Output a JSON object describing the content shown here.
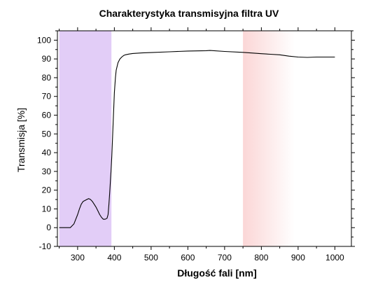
{
  "chart_data": {
    "type": "line",
    "title": "Charakterystyka transmisyjna filtra UV",
    "xlabel": "Długość fali [nm]",
    "ylabel": "Transmisja [%]",
    "xlim": [
      245,
      1045
    ],
    "ylim": [
      -10,
      105
    ],
    "xticks": [
      300,
      400,
      500,
      600,
      700,
      800,
      900,
      1000
    ],
    "xtick_labels": [
      "300",
      "400",
      "500",
      "600",
      "700",
      "800",
      "900",
      "1000"
    ],
    "yticks": [
      -10,
      0,
      10,
      20,
      30,
      40,
      50,
      60,
      70,
      80,
      90,
      100
    ],
    "ytick_labels": [
      "-10",
      "0",
      "10",
      "20",
      "30",
      "40",
      "50",
      "60",
      "70",
      "80",
      "90",
      "100"
    ],
    "grid": false,
    "legend": "none",
    "regions": [
      {
        "x_start": 250,
        "x_end": 392,
        "color": "#e2cdf7",
        "style": "solid"
      },
      {
        "x_start": 750,
        "x_end": 890,
        "color": "#fbd6d6",
        "style": "gradient-right"
      }
    ],
    "series": [
      {
        "color": "#000000",
        "x": [
          250,
          280,
          290,
          300,
          305,
          310,
          315,
          320,
          325,
          330,
          335,
          340,
          345,
          350,
          355,
          360,
          365,
          370,
          375,
          380,
          383,
          385,
          387,
          389,
          391,
          393,
          395,
          398,
          400,
          403,
          405,
          410,
          415,
          420,
          425,
          430,
          440,
          450,
          475,
          500,
          550,
          600,
          650,
          660,
          700,
          750,
          800,
          825,
          850,
          875,
          900,
          925,
          950,
          975,
          1000
        ],
        "y": [
          0,
          0,
          2,
          7,
          10,
          12.5,
          14,
          14.5,
          15,
          15.5,
          15,
          14,
          12.5,
          11,
          9,
          7,
          5.5,
          4.5,
          4.5,
          5,
          7,
          12,
          18,
          24,
          30,
          38,
          48,
          62,
          72,
          80,
          84,
          88,
          90,
          91,
          91.8,
          92.2,
          92.6,
          92.9,
          93.2,
          93.4,
          93.8,
          94.2,
          94.4,
          94.5,
          94.0,
          93.5,
          92.8,
          92.5,
          92.2,
          91.5,
          91.0,
          90.8,
          91.0,
          91.0,
          91.0
        ]
      }
    ]
  }
}
